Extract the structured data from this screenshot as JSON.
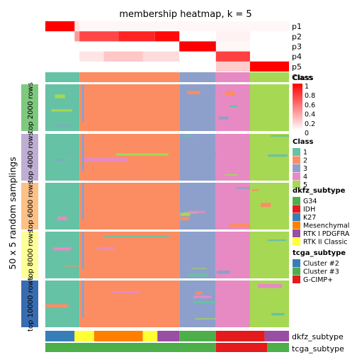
{
  "chart_data": {
    "type": "heatmap",
    "title": "membership heatmap, k = 5",
    "ylabel": "50 x 5 random samplings",
    "membership_rows": [
      "p1",
      "p2",
      "p3",
      "p4",
      "p5"
    ],
    "class_row_label": "Class",
    "membership_scale": {
      "title": "Class",
      "ticks": [
        "1",
        "0.8",
        "0.6",
        "0.4",
        "0.2",
        "0"
      ],
      "low_color": "#ffffff",
      "high_color": "#ff0000"
    },
    "class_colors": {
      "1": "#66c2a5",
      "2": "#fc8d62",
      "3": "#8da0cb",
      "4": "#e78ac3",
      "5": "#a6d854"
    },
    "class_segments": [
      {
        "class": "1",
        "from": 0.0,
        "to": 0.14
      },
      {
        "class": "2",
        "from": 0.14,
        "to": 0.55
      },
      {
        "class": "3",
        "from": 0.55,
        "to": 0.7
      },
      {
        "class": "4",
        "from": 0.7,
        "to": 0.84
      },
      {
        "class": "5",
        "from": 0.84,
        "to": 1.0
      }
    ],
    "row_groups": [
      {
        "label": "top 2000 rows",
        "color": "#7fc97f"
      },
      {
        "label": "top 4000 rows",
        "color": "#beaed4"
      },
      {
        "label": "top 6000 rows",
        "color": "#fdc086"
      },
      {
        "label": "top 8000 rows",
        "color": "#ffff99"
      },
      {
        "label": "top 10000 rows",
        "color": "#386cb0"
      }
    ],
    "legends": [
      {
        "title": "Class",
        "items": [
          {
            "label": "1",
            "color": "#66c2a5"
          },
          {
            "label": "2",
            "color": "#fc8d62"
          },
          {
            "label": "3",
            "color": "#8da0cb"
          },
          {
            "label": "4",
            "color": "#e78ac3"
          },
          {
            "label": "5",
            "color": "#a6d854"
          }
        ]
      },
      {
        "title": "dkfz_subtype",
        "items": [
          {
            "label": "G34",
            "color": "#4daf4a"
          },
          {
            "label": "IDH",
            "color": "#e41a1c"
          },
          {
            "label": "K27",
            "color": "#377eb8"
          },
          {
            "label": "Mesenchymal",
            "color": "#ff7f00"
          },
          {
            "label": "RTK I PDGFRA",
            "color": "#984ea3"
          },
          {
            "label": "RTK II Classic",
            "color": "#ffff33"
          }
        ]
      },
      {
        "title": "tcga_subtype",
        "items": [
          {
            "label": "Cluster #2",
            "color": "#377eb8"
          },
          {
            "label": "Cluster #3",
            "color": "#4daf4a"
          },
          {
            "label": "G-CIMP+",
            "color": "#e41a1c"
          }
        ]
      }
    ],
    "annotation_rows": [
      "dkfz_subtype",
      "tcga_subtype"
    ]
  }
}
